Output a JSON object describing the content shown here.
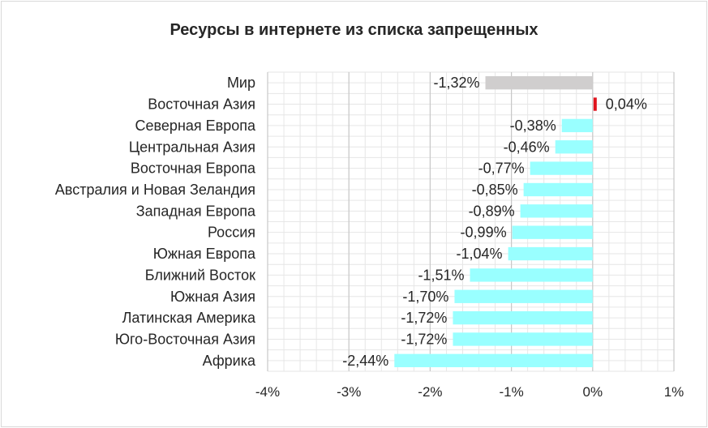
{
  "chart_data": {
    "type": "bar",
    "orientation": "horizontal",
    "title": "Ресурсы в интернете из списка запрещенных",
    "xlabel": "",
    "ylabel": "",
    "xlim": [
      -4,
      1
    ],
    "xticks": [
      -4,
      -3,
      -2,
      -1,
      0,
      1
    ],
    "xtick_labels": [
      "-4%",
      "-3%",
      "-2%",
      "-1%",
      "0%",
      "1%"
    ],
    "grid": true,
    "categories": [
      "Мир",
      "Восточная Азия",
      "Северная Европа",
      "Центральная Азия",
      "Восточная Европа",
      "Австралия и Новая Зеландия",
      "Западная Европа",
      "Россия",
      "Южная Европа",
      "Ближний Восток",
      "Южная Азия",
      "Латинская Америка",
      "Юго-Восточная Азия",
      "Африка"
    ],
    "values": [
      -1.32,
      0.04,
      -0.38,
      -0.46,
      -0.77,
      -0.85,
      -0.89,
      -0.99,
      -1.04,
      -1.51,
      -1.7,
      -1.72,
      -1.72,
      -2.44
    ],
    "value_labels": [
      "-1,32%",
      "0,04%",
      "-0,38%",
      "-0,46%",
      "-0,77%",
      "-0,85%",
      "-0,89%",
      "-0,99%",
      "-1,04%",
      "-1,51%",
      "-1,70%",
      "-1,72%",
      "-1,72%",
      "-2,44%"
    ],
    "colors": {
      "world": "#d0cece",
      "positive": "#e0141e",
      "negative": "#99ffff",
      "grid": "#e6e6e6"
    }
  }
}
